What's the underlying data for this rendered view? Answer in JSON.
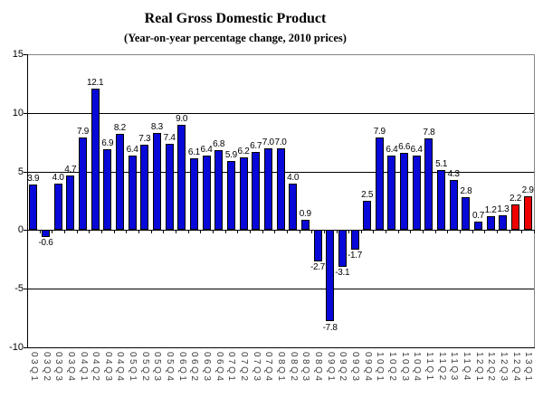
{
  "title": "Real Gross Domestic Product",
  "subtitle": "(Year-on-year percentage change, 2010 prices)",
  "chart_data": {
    "type": "bar",
    "title": "Real Gross Domestic Product",
    "subtitle": "(Year-on-year percentage change, 2010 prices)",
    "categories": [
      "03Q1",
      "03Q2",
      "03Q3",
      "03Q4",
      "04Q1",
      "04Q2",
      "04Q3",
      "04Q4",
      "05Q1",
      "05Q2",
      "05Q3",
      "05Q4",
      "06Q1",
      "06Q2",
      "06Q3",
      "06Q4",
      "07Q1",
      "07Q2",
      "07Q3",
      "07Q4",
      "08Q1",
      "08Q2",
      "08Q3",
      "08Q4",
      "09Q1",
      "09Q2",
      "09Q3",
      "09Q4",
      "10Q1",
      "10Q2",
      "10Q3",
      "10Q4",
      "11Q1",
      "11Q2",
      "11Q3",
      "11Q4",
      "12Q1",
      "12Q2",
      "12Q3",
      "12Q4",
      "13Q1"
    ],
    "values": [
      3.9,
      -0.6,
      4.0,
      4.7,
      7.9,
      12.1,
      6.9,
      8.2,
      6.4,
      7.3,
      8.3,
      7.4,
      9.0,
      6.1,
      6.4,
      6.8,
      5.9,
      6.2,
      6.7,
      7.0,
      7.0,
      4.0,
      0.9,
      -2.7,
      -7.8,
      -3.1,
      -1.7,
      2.5,
      7.9,
      6.4,
      6.6,
      6.4,
      7.8,
      5.1,
      4.3,
      2.8,
      0.7,
      1.2,
      1.3,
      2.2,
      2.9
    ],
    "highlight_indices": [
      39,
      40
    ],
    "value_labels_shown": true,
    "ylim": [
      -10,
      15
    ],
    "y_ticks": [
      15,
      10,
      5,
      0,
      -5,
      -10
    ],
    "grid_values": [
      10,
      5,
      -5
    ],
    "legend": "none",
    "colors": {
      "bar": "#0808d8",
      "bar_highlight": "#ee0000",
      "bar_border": "#000000",
      "gridline": "#000000",
      "plot_border": "#848484",
      "axis": "#000000"
    }
  }
}
